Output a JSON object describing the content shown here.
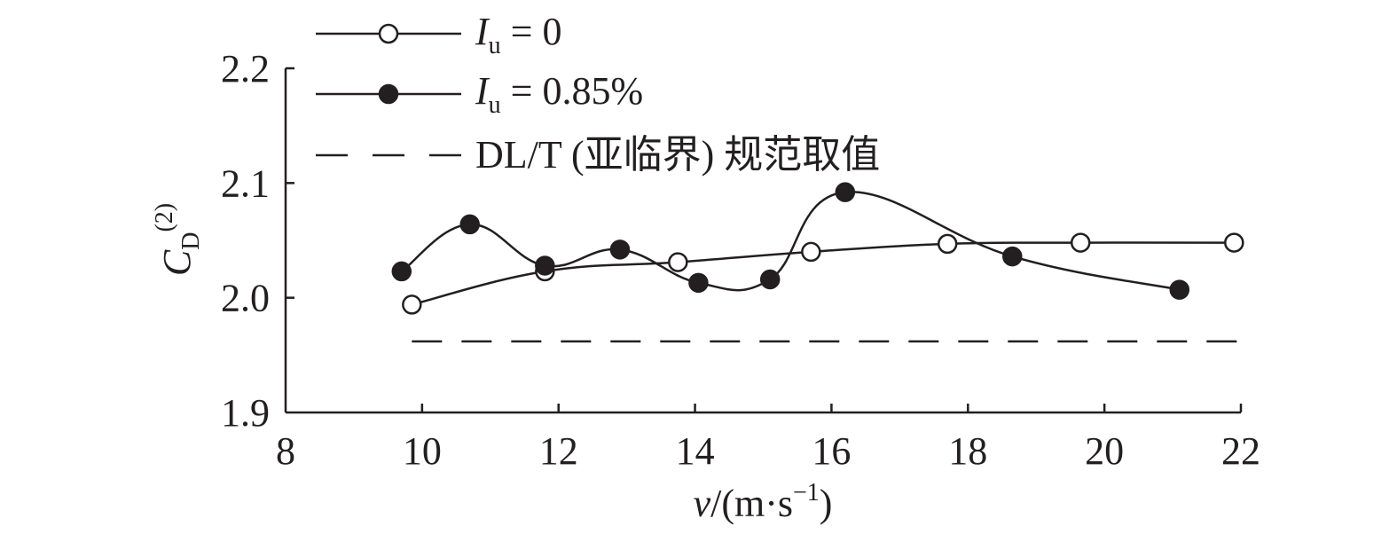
{
  "chart_data": {
    "type": "line",
    "xlabel": {
      "var": "v",
      "unit": "/(m·s",
      "exp": "−1",
      "close": ")"
    },
    "ylabel": {
      "base": "C",
      "sub": "D",
      "sup": "(2)"
    },
    "xlim": [
      8,
      22
    ],
    "ylim": [
      1.9,
      2.2
    ],
    "x_ticks": [
      "8",
      "10",
      "12",
      "14",
      "16",
      "18",
      "20",
      "22"
    ],
    "y_ticks": [
      "1.9",
      "2.0",
      "2.1",
      "2.2"
    ],
    "series": [
      {
        "name": "I_u = 0",
        "legend": {
          "var": "I",
          "sub": "u",
          "text": " = 0"
        },
        "marker": "open-circle",
        "x": [
          9.85,
          11.8,
          13.75,
          15.7,
          17.7,
          19.65,
          21.9
        ],
        "y": [
          1.994,
          2.023,
          2.031,
          2.04,
          2.047,
          2.048,
          2.048
        ]
      },
      {
        "name": "I_u = 0.85%",
        "legend": {
          "var": "I",
          "sub": "u",
          "text": " = 0.85%"
        },
        "marker": "filled-circle",
        "x": [
          9.7,
          10.7,
          11.8,
          12.9,
          14.05,
          15.1,
          16.2,
          18.65,
          21.1
        ],
        "y": [
          2.023,
          2.064,
          2.028,
          2.042,
          2.013,
          2.016,
          2.092,
          2.036,
          2.007
        ]
      }
    ],
    "reference_line": {
      "label": "DL/T (亚临界) 规范取值",
      "y": 1.962,
      "x_range": [
        9.85,
        22
      ]
    }
  }
}
